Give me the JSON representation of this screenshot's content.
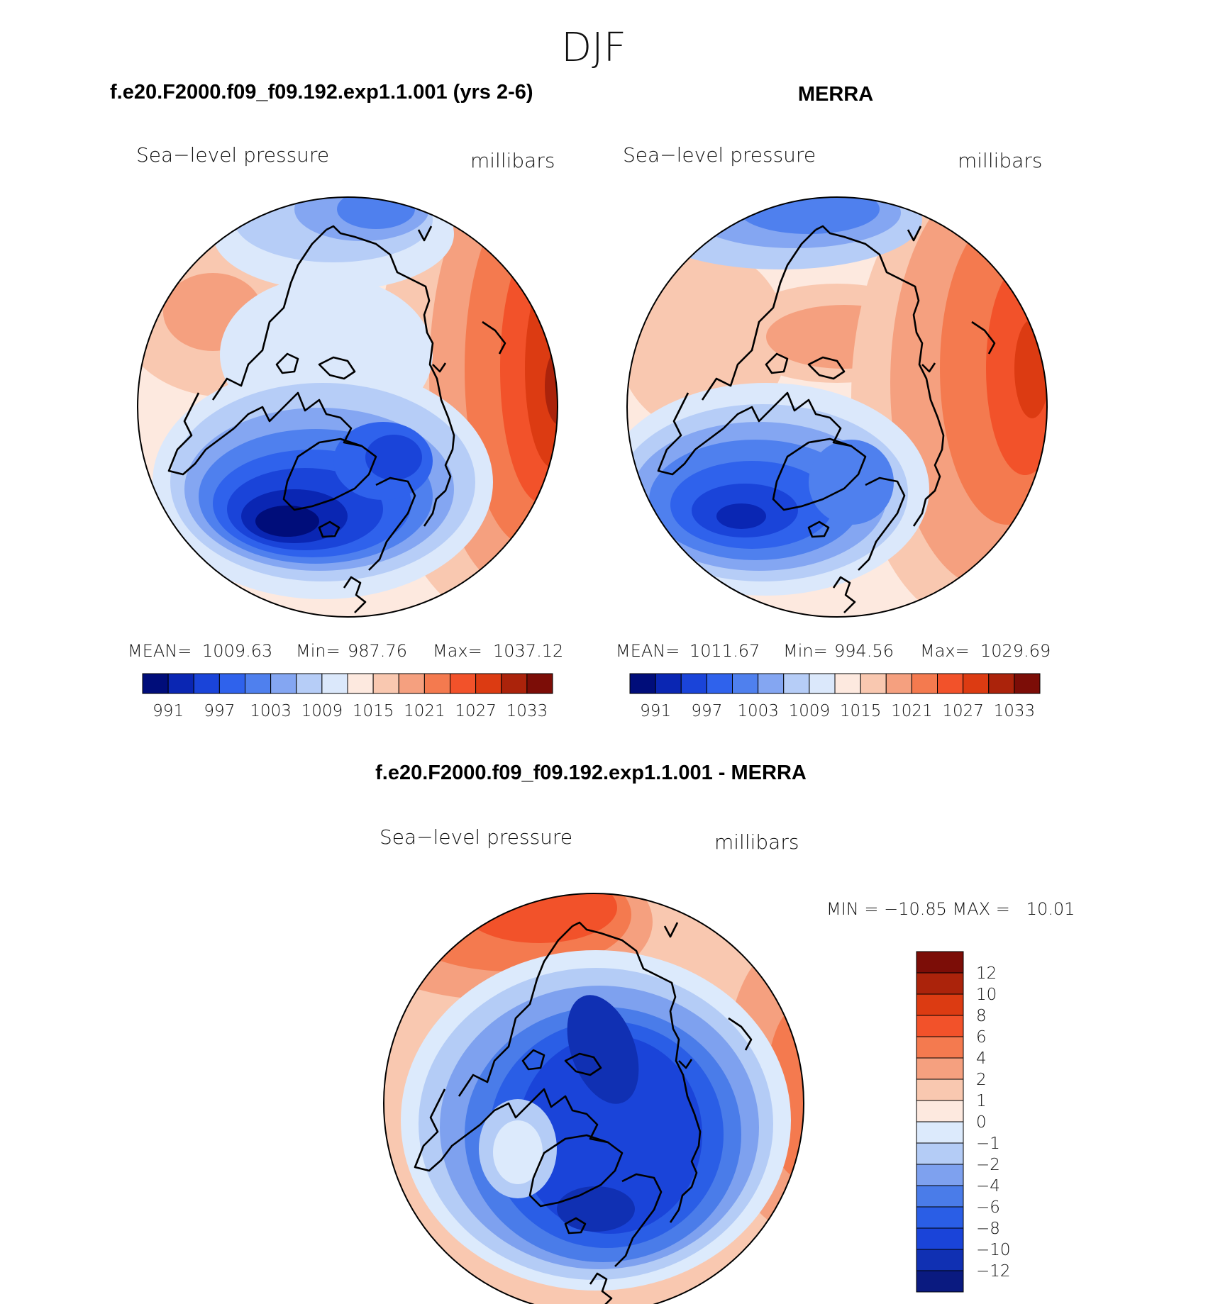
{
  "season": "DJF",
  "colors": {
    "abs_scale": [
      "#000d7a",
      "#0a26b3",
      "#1a44d9",
      "#2f62ec",
      "#4f80ee",
      "#84a6f2",
      "#b6cdf7",
      "#dbe8fb",
      "#fde9df",
      "#f9c8b0",
      "#f5a07f",
      "#f47a4f",
      "#f2522a",
      "#dc3b12",
      "#ab230b",
      "#7c0d07"
    ],
    "diff_scale": [
      "#0a1a80",
      "#1030b3",
      "#1a44d9",
      "#2a5ee6",
      "#4a7ce9",
      "#7ea1ef",
      "#b4ccf6",
      "#dceafc",
      "#fde9df",
      "#f9c8b0",
      "#f5a07f",
      "#f47a4f",
      "#f2522a",
      "#dc3b12",
      "#ab230b",
      "#7c0d07"
    ]
  },
  "panels": {
    "model": {
      "header": "f.e20.F2000.f09_f09.192.exp1.1.001 (yrs 2-6)",
      "title": "Sea−level pressure",
      "units": "millibars",
      "mean_label": "MEAN=",
      "mean": "1009.63",
      "min_label": "Min=",
      "min": "987.76",
      "max_label": "Max=",
      "max": "1037.12"
    },
    "merra": {
      "header": "MERRA",
      "title": "Sea−level pressure",
      "units": "millibars",
      "mean_label": "MEAN=",
      "mean": "1011.67",
      "min_label": "Min=",
      "min": "994.56",
      "max_label": "Max=",
      "max": "1029.69"
    },
    "diff": {
      "header": "f.e20.F2000.f09_f09.192.exp1.1.001 - MERRA",
      "title": "Sea−level pressure",
      "units": "millibars",
      "minmax_text": "MIN = −10.85 MAX =   10.01"
    }
  },
  "chart_data": [
    {
      "type": "heatmap",
      "projection": "north-polar-stereographic",
      "title": "Sea−level pressure",
      "subtitle": "f.e20.F2000.f09_f09.192.exp1.1.001 (yrs 2-6)",
      "units": "millibars",
      "mean": 1009.63,
      "min": 987.76,
      "max": 1037.12,
      "contour_levels": [
        991,
        994,
        997,
        1000,
        1003,
        1006,
        1009,
        1012,
        1015,
        1018,
        1021,
        1024,
        1027,
        1030,
        1033
      ],
      "colorbar_labels": [
        "991",
        "997",
        "1003",
        "1009",
        "1015",
        "1021",
        "1027",
        "1033"
      ]
    },
    {
      "type": "heatmap",
      "projection": "north-polar-stereographic",
      "title": "Sea−level pressure",
      "subtitle": "MERRA",
      "units": "millibars",
      "mean": 1011.67,
      "min": 994.56,
      "max": 1029.69,
      "contour_levels": [
        991,
        994,
        997,
        1000,
        1003,
        1006,
        1009,
        1012,
        1015,
        1018,
        1021,
        1024,
        1027,
        1030,
        1033
      ],
      "colorbar_labels": [
        "991",
        "997",
        "1003",
        "1009",
        "1015",
        "1021",
        "1027",
        "1033"
      ]
    },
    {
      "type": "heatmap",
      "projection": "north-polar-stereographic",
      "title": "Sea−level pressure",
      "subtitle": "f.e20.F2000.f09_f09.192.exp1.1.001 - MERRA",
      "units": "millibars",
      "min": -10.85,
      "max": 10.01,
      "contour_levels": [
        -12,
        -10,
        -8,
        -6,
        -4,
        -2,
        -1,
        0,
        1,
        2,
        4,
        6,
        8,
        10,
        12
      ],
      "colorbar_labels": [
        "12",
        "10",
        "8",
        "6",
        "4",
        "2",
        "1",
        "0",
        "−1",
        "−2",
        "−4",
        "−6",
        "−8",
        "−10",
        "−12"
      ]
    }
  ]
}
